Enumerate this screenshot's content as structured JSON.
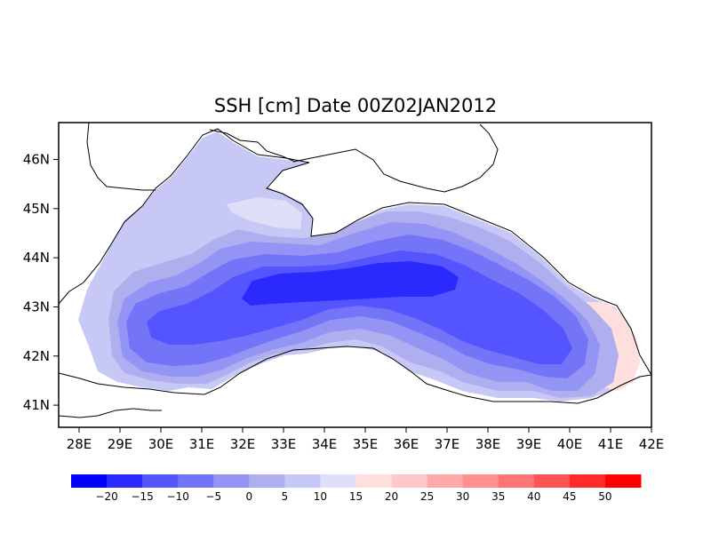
{
  "title": "SSH [cm] Date 00Z02JAN2012",
  "map": {
    "lon_range": [
      27.5,
      42.0
    ],
    "lat_range": [
      40.55,
      46.75
    ],
    "lon_ticks": [
      {
        "value": 28,
        "label": "28E"
      },
      {
        "value": 29,
        "label": "29E"
      },
      {
        "value": 30,
        "label": "30E"
      },
      {
        "value": 31,
        "label": "31E"
      },
      {
        "value": 32,
        "label": "32E"
      },
      {
        "value": 33,
        "label": "33E"
      },
      {
        "value": 34,
        "label": "34E"
      },
      {
        "value": 35,
        "label": "35E"
      },
      {
        "value": 36,
        "label": "36E"
      },
      {
        "value": 37,
        "label": "37E"
      },
      {
        "value": 38,
        "label": "38E"
      },
      {
        "value": 39,
        "label": "39E"
      },
      {
        "value": 40,
        "label": "40E"
      },
      {
        "value": 41,
        "label": "41E"
      },
      {
        "value": 42,
        "label": "42E"
      }
    ],
    "lat_ticks": [
      {
        "value": 41,
        "label": "41N"
      },
      {
        "value": 42,
        "label": "42N"
      },
      {
        "value": 43,
        "label": "43N"
      },
      {
        "value": 44,
        "label": "44N"
      },
      {
        "value": 45,
        "label": "45N"
      },
      {
        "value": 46,
        "label": "46N"
      }
    ]
  },
  "colorbar": {
    "colors": [
      "#0000ff",
      "#2a2aff",
      "#5555ff",
      "#7474f8",
      "#9494f5",
      "#afafef",
      "#c8c8f7",
      "#dfdff9",
      "#ffdede",
      "#ffc8c8",
      "#ffaaaa",
      "#ff9090",
      "#ff7474",
      "#ff5555",
      "#ff2a2a",
      "#ff0000"
    ],
    "labels": [
      "-20",
      "-15",
      "-10",
      "-5",
      "0",
      "5",
      "10",
      "15",
      "20",
      "25",
      "30",
      "35",
      "40",
      "45",
      "50"
    ]
  },
  "chart_data": {
    "type": "heatmap",
    "title": "SSH [cm] Date 00Z02JAN2012",
    "variable": "SSH [cm]",
    "date": "00Z02JAN2012",
    "x_range": [
      27.5,
      42.0
    ],
    "y_range": [
      40.55,
      46.75
    ],
    "x_ticks": [
      "28E",
      "29E",
      "30E",
      "31E",
      "32E",
      "33E",
      "34E",
      "35E",
      "36E",
      "37E",
      "38E",
      "39E",
      "40E",
      "41E",
      "42E"
    ],
    "y_ticks": [
      "41N",
      "42N",
      "43N",
      "44N",
      "45N",
      "46N"
    ],
    "color_levels": [
      -20,
      -15,
      -10,
      -5,
      0,
      5,
      10,
      15,
      20,
      25,
      30,
      35,
      40,
      45,
      50
    ]
  }
}
